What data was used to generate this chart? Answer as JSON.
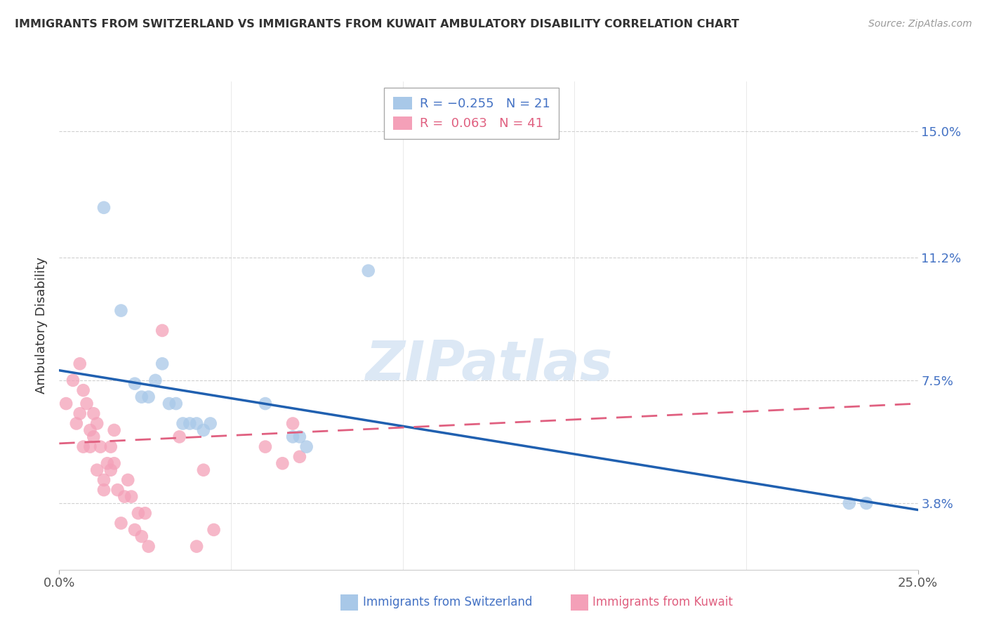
{
  "title": "IMMIGRANTS FROM SWITZERLAND VS IMMIGRANTS FROM KUWAIT AMBULATORY DISABILITY CORRELATION CHART",
  "source": "Source: ZipAtlas.com",
  "ylabel": "Ambulatory Disability",
  "yticks": [
    0.038,
    0.075,
    0.112,
    0.15
  ],
  "ytick_labels": [
    "3.8%",
    "7.5%",
    "11.2%",
    "15.0%"
  ],
  "xlim": [
    0.0,
    0.25
  ],
  "ylim": [
    0.018,
    0.165
  ],
  "legend_r_swiss": "R = −0.255",
  "legend_n_swiss": "N = 21",
  "legend_r_kuwait": "R =  0.063",
  "legend_n_kuwait": "N = 41",
  "swiss_color": "#a8c8e8",
  "kuwait_color": "#f4a0b8",
  "swiss_line_color": "#2060b0",
  "kuwait_line_color": "#e06080",
  "swiss_scatter_x": [
    0.013,
    0.018,
    0.022,
    0.024,
    0.026,
    0.028,
    0.03,
    0.032,
    0.034,
    0.036,
    0.038,
    0.04,
    0.042,
    0.044,
    0.06,
    0.068,
    0.07,
    0.072,
    0.09,
    0.23,
    0.235
  ],
  "swiss_scatter_y": [
    0.127,
    0.096,
    0.074,
    0.07,
    0.07,
    0.075,
    0.08,
    0.068,
    0.068,
    0.062,
    0.062,
    0.062,
    0.06,
    0.062,
    0.068,
    0.058,
    0.058,
    0.055,
    0.108,
    0.038,
    0.038
  ],
  "kuwait_scatter_x": [
    0.002,
    0.004,
    0.005,
    0.006,
    0.006,
    0.007,
    0.007,
    0.008,
    0.009,
    0.009,
    0.01,
    0.01,
    0.011,
    0.011,
    0.012,
    0.013,
    0.013,
    0.014,
    0.015,
    0.015,
    0.016,
    0.016,
    0.017,
    0.018,
    0.019,
    0.02,
    0.021,
    0.022,
    0.023,
    0.024,
    0.025,
    0.026,
    0.03,
    0.035,
    0.04,
    0.042,
    0.045,
    0.06,
    0.065,
    0.068,
    0.07
  ],
  "kuwait_scatter_y": [
    0.068,
    0.075,
    0.062,
    0.08,
    0.065,
    0.055,
    0.072,
    0.068,
    0.06,
    0.055,
    0.065,
    0.058,
    0.048,
    0.062,
    0.055,
    0.045,
    0.042,
    0.05,
    0.048,
    0.055,
    0.05,
    0.06,
    0.042,
    0.032,
    0.04,
    0.045,
    0.04,
    0.03,
    0.035,
    0.028,
    0.035,
    0.025,
    0.09,
    0.058,
    0.025,
    0.048,
    0.03,
    0.055,
    0.05,
    0.062,
    0.052
  ],
  "swiss_trend_x": [
    0.0,
    0.25
  ],
  "swiss_trend_y": [
    0.078,
    0.036
  ],
  "kuwait_trend_x": [
    0.0,
    0.25
  ],
  "kuwait_trend_y": [
    0.056,
    0.068
  ],
  "background_color": "#ffffff",
  "grid_color": "#d0d0d0"
}
